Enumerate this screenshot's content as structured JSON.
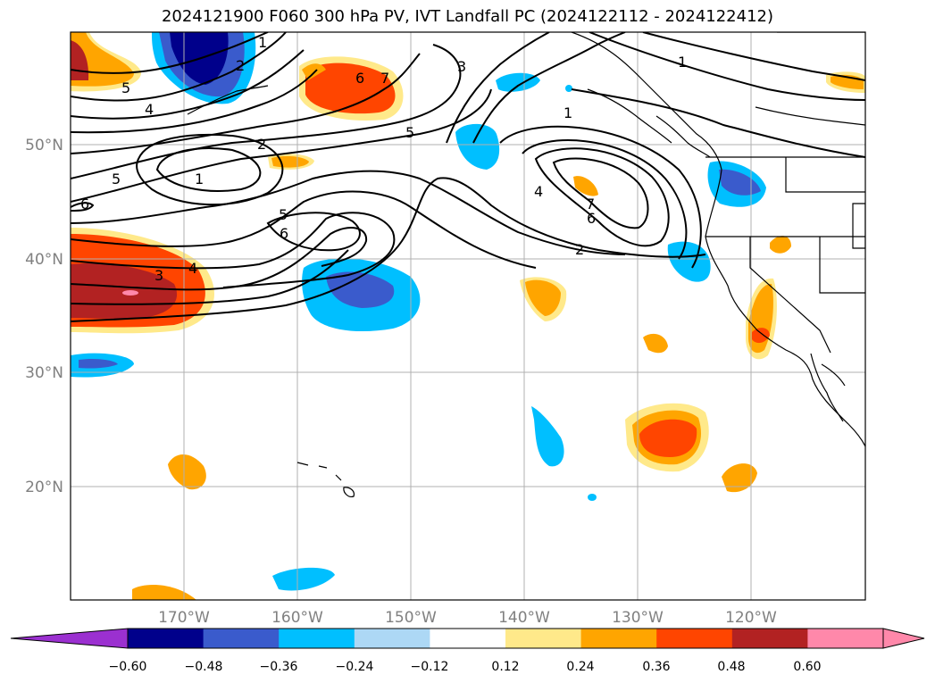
{
  "title": "2024121900 F060 300 hPa PV, IVT Landfall PC (2024122112 - 2024122412)",
  "map": {
    "lat_labels": [
      "50°N",
      "40°N",
      "30°N",
      "20°N"
    ],
    "lon_labels": [
      "170°W",
      "160°W",
      "150°W",
      "140°W",
      "130°W",
      "120°W"
    ],
    "contour_labels": [
      "1",
      "2",
      "5",
      "4",
      "6",
      "7",
      "3",
      "1",
      "5",
      "2",
      "1",
      "5",
      "6",
      "3",
      "4",
      "5",
      "7",
      "6",
      "4",
      "2",
      "1",
      "6"
    ]
  },
  "colorbar": {
    "tick_labels": [
      "−0.60",
      "−0.48",
      "−0.36",
      "−0.24",
      "−0.12",
      "0.12",
      "0.24",
      "0.36",
      "0.48",
      "0.60"
    ],
    "colors": {
      "under": "#9b30d0",
      "bins": [
        "#00008b",
        "#3a5bcc",
        "#00bfff",
        "#add8f5",
        "#ffffff",
        "#ffe98a",
        "#ffa500",
        "#ff4500",
        "#b22222",
        "#ff88aa"
      ]
    }
  }
}
